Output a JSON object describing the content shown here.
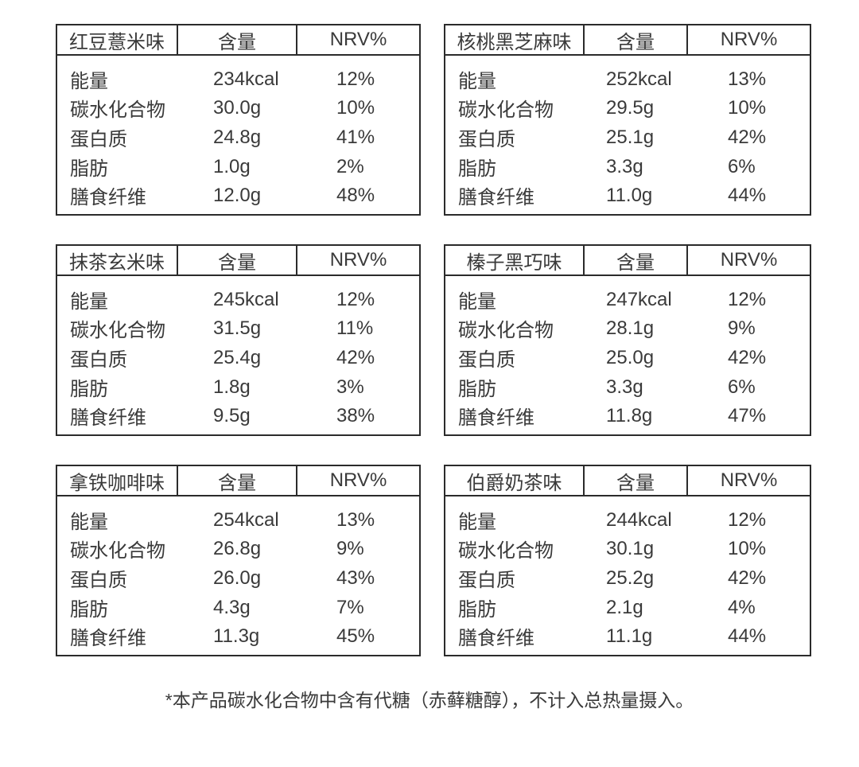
{
  "colors": {
    "background": "#ffffff",
    "text": "#3a3a3a",
    "border": "#2b2b2b"
  },
  "columns": {
    "amount": "含量",
    "nrv": "NRV%"
  },
  "tables": [
    {
      "flavor": "红豆薏米味",
      "rows": [
        {
          "label": "能量",
          "amount": "234kcal",
          "nrv": "12%"
        },
        {
          "label": "碳水化合物",
          "amount": "30.0g",
          "nrv": "10%"
        },
        {
          "label": "蛋白质",
          "amount": "24.8g",
          "nrv": "41%"
        },
        {
          "label": "脂肪",
          "amount": "1.0g",
          "nrv": "2%"
        },
        {
          "label": "膳食纤维",
          "amount": "12.0g",
          "nrv": "48%"
        }
      ]
    },
    {
      "flavor": "核桃黑芝麻味",
      "rows": [
        {
          "label": "能量",
          "amount": "252kcal",
          "nrv": "13%"
        },
        {
          "label": "碳水化合物",
          "amount": "29.5g",
          "nrv": "10%"
        },
        {
          "label": "蛋白质",
          "amount": "25.1g",
          "nrv": "42%"
        },
        {
          "label": "脂肪",
          "amount": "3.3g",
          "nrv": "6%"
        },
        {
          "label": "膳食纤维",
          "amount": "11.0g",
          "nrv": "44%"
        }
      ]
    },
    {
      "flavor": "抹茶玄米味",
      "rows": [
        {
          "label": "能量",
          "amount": "245kcal",
          "nrv": "12%"
        },
        {
          "label": "碳水化合物",
          "amount": "31.5g",
          "nrv": "11%"
        },
        {
          "label": "蛋白质",
          "amount": "25.4g",
          "nrv": "42%"
        },
        {
          "label": "脂肪",
          "amount": "1.8g",
          "nrv": "3%"
        },
        {
          "label": "膳食纤维",
          "amount": "9.5g",
          "nrv": "38%"
        }
      ]
    },
    {
      "flavor": "榛子黑巧味",
      "rows": [
        {
          "label": "能量",
          "amount": "247kcal",
          "nrv": "12%"
        },
        {
          "label": "碳水化合物",
          "amount": "28.1g",
          "nrv": "9%"
        },
        {
          "label": "蛋白质",
          "amount": "25.0g",
          "nrv": "42%"
        },
        {
          "label": "脂肪",
          "amount": "3.3g",
          "nrv": "6%"
        },
        {
          "label": "膳食纤维",
          "amount": "11.8g",
          "nrv": "47%"
        }
      ]
    },
    {
      "flavor": "拿铁咖啡味",
      "rows": [
        {
          "label": "能量",
          "amount": "254kcal",
          "nrv": "13%"
        },
        {
          "label": "碳水化合物",
          "amount": "26.8g",
          "nrv": "9%"
        },
        {
          "label": "蛋白质",
          "amount": "26.0g",
          "nrv": "43%"
        },
        {
          "label": "脂肪",
          "amount": "4.3g",
          "nrv": "7%"
        },
        {
          "label": "膳食纤维",
          "amount": "11.3g",
          "nrv": "45%"
        }
      ]
    },
    {
      "flavor": "伯爵奶茶味",
      "rows": [
        {
          "label": "能量",
          "amount": "244kcal",
          "nrv": "12%"
        },
        {
          "label": "碳水化合物",
          "amount": "30.1g",
          "nrv": "10%"
        },
        {
          "label": "蛋白质",
          "amount": "25.2g",
          "nrv": "42%"
        },
        {
          "label": "脂肪",
          "amount": "2.1g",
          "nrv": "4%"
        },
        {
          "label": "膳食纤维",
          "amount": "11.1g",
          "nrv": "44%"
        }
      ]
    }
  ],
  "footnote": "*本产品碳水化合物中含有代糖（赤藓糖醇），不计入总热量摄入。"
}
